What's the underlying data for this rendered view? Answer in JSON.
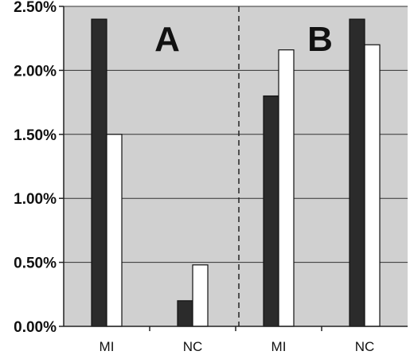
{
  "chart_data": {
    "type": "bar",
    "panels": [
      "A",
      "B"
    ],
    "categories": [
      "MI",
      "NC",
      "MI",
      "NC"
    ],
    "series": [
      {
        "values": [
          2.4,
          0.2,
          1.8,
          2.4
        ],
        "color": "#2b2b2b"
      },
      {
        "values": [
          1.5,
          0.48,
          2.16,
          2.2
        ],
        "color": "#ffffff"
      }
    ],
    "y_ticks": [
      "0.00%",
      "0.50%",
      "1.00%",
      "1.50%",
      "2.00%",
      "2.50%"
    ],
    "ylim": [
      0,
      2.5
    ],
    "grid": true,
    "panel_divider": "dashed",
    "plot_background": "#d0d0d0"
  }
}
